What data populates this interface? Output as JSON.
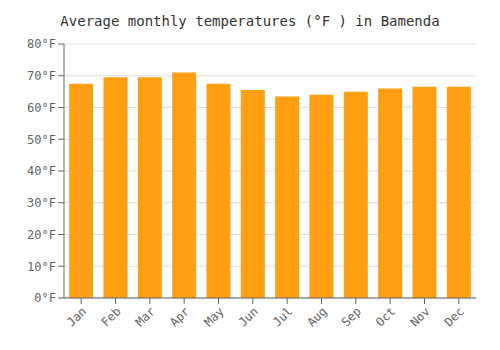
{
  "chart_data": {
    "type": "bar",
    "title": "Average monthly temperatures (°F ) in Bamenda",
    "categories": [
      "Jan",
      "Feb",
      "Mar",
      "Apr",
      "May",
      "Jun",
      "Jul",
      "Aug",
      "Sep",
      "Oct",
      "Nov",
      "Dec"
    ],
    "values": [
      67.5,
      69.5,
      69.5,
      71.0,
      67.5,
      65.5,
      63.5,
      64.0,
      65.0,
      66.0,
      66.5,
      66.5
    ],
    "color": "#ffa014",
    "ylim": [
      0,
      80
    ],
    "yticks": [
      {
        "value": 0,
        "label": "0°F"
      },
      {
        "value": 10,
        "label": "10°F"
      },
      {
        "value": 20,
        "label": "20°F"
      },
      {
        "value": 30,
        "label": "30°F"
      },
      {
        "value": 40,
        "label": "40°F"
      },
      {
        "value": 50,
        "label": "50°F"
      },
      {
        "value": 60,
        "label": "60°F"
      },
      {
        "value": 70,
        "label": "70°F"
      },
      {
        "value": 80,
        "label": "80°F"
      }
    ],
    "grid": true
  }
}
